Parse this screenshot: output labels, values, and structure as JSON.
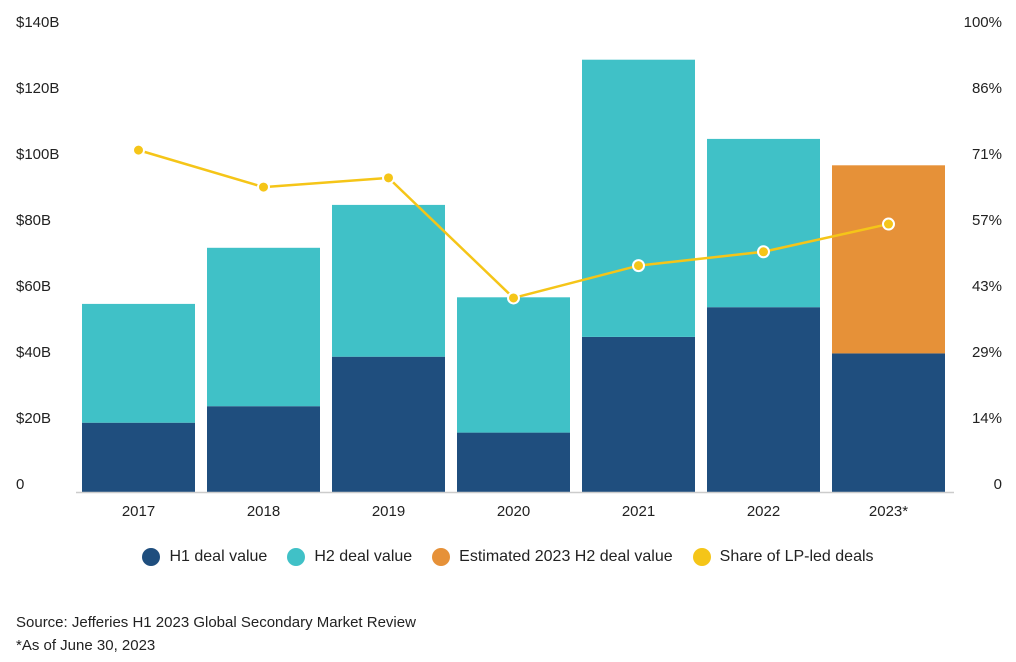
{
  "chart_data": {
    "type": "bar",
    "stacked": true,
    "categories": [
      "2017",
      "2018",
      "2019",
      "2020",
      "2021",
      "2022",
      "2023*"
    ],
    "series": [
      {
        "name": "H1 deal value",
        "color": "#1f4e7e",
        "values": [
          21,
          26,
          41,
          18,
          47,
          56,
          42
        ]
      },
      {
        "name": "H2 deal value",
        "color": "#40c1c7",
        "values": [
          36,
          48,
          46,
          41,
          84,
          51,
          null
        ]
      },
      {
        "name": "Estimated 2023 H2 deal value",
        "color": "#e69138",
        "values": [
          null,
          null,
          null,
          null,
          null,
          null,
          57
        ]
      }
    ],
    "line_series": {
      "name": "Share of LP-led deals",
      "color": "#f5c518",
      "axis": "right",
      "values": [
        74,
        66,
        68,
        42,
        49,
        52,
        58
      ]
    },
    "y_left": {
      "ticks": [
        "0",
        "$20B",
        "$40B",
        "$60B",
        "$80B",
        "$100B",
        "$120B",
        "$140B"
      ],
      "ylim": [
        0,
        140
      ]
    },
    "y_right": {
      "ticks": [
        "0",
        "14%",
        "29%",
        "43%",
        "57%",
        "71%",
        "86%",
        "100%"
      ],
      "ylim": [
        0,
        100
      ]
    },
    "legend": {
      "placement": "bottom"
    }
  },
  "legend_items": [
    {
      "label": "H1 deal value",
      "color": "#1f4e7e"
    },
    {
      "label": "H2 deal value",
      "color": "#40c1c7"
    },
    {
      "label": "Estimated 2023 H2 deal value",
      "color": "#e69138"
    },
    {
      "label": "Share of LP-led deals",
      "color": "#f5c518"
    }
  ],
  "footnotes": {
    "source": "Source: Jefferies H1 2023 Global Secondary Market Review",
    "asof": "*As of June 30, 2023"
  }
}
